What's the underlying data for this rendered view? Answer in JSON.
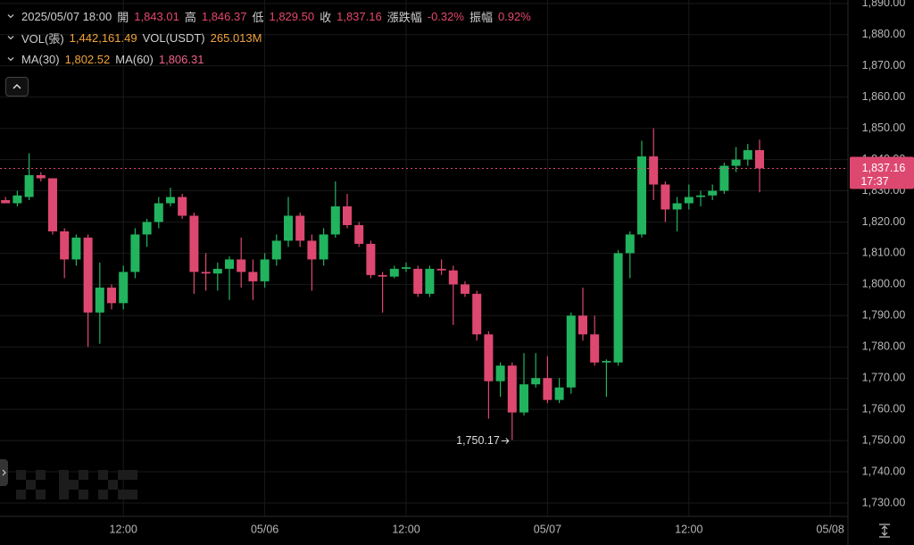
{
  "chart_data": {
    "type": "candlestick",
    "header": {
      "datetime": "2025/05/07 18:00",
      "items": [
        {
          "label": "開",
          "value": "1,843.01"
        },
        {
          "label": "高",
          "value": "1,846.37"
        },
        {
          "label": "低",
          "value": "1,829.50"
        },
        {
          "label": "收",
          "value": "1,837.16"
        },
        {
          "label": "漲跌幅",
          "value": "-0.32%"
        },
        {
          "label": "振幅",
          "value": "0.92%"
        }
      ],
      "volume": [
        {
          "label": "VOL(張)",
          "value": "1,442,161.49"
        },
        {
          "label": "VOL(USDT)",
          "value": "265.013M"
        }
      ],
      "ma": [
        {
          "label": "MA(30)",
          "value": "1,802.52"
        },
        {
          "label": "MA(60)",
          "value": "1,806.31"
        }
      ]
    },
    "open": [
      1827,
      1826,
      1828,
      1835,
      1834,
      1817,
      1808,
      1815,
      1791,
      1799,
      1794,
      1804,
      1816,
      1820,
      1826,
      1828,
      1822,
      1804,
      1803.5,
      1805,
      1808,
      1804,
      1801,
      1808,
      1814,
      1822,
      1814,
      1808,
      1816,
      1825,
      1819,
      1813,
      1803,
      1802.5,
      1805,
      1805,
      1797,
      1805,
      1804.5,
      1800,
      1797,
      1784,
      1769,
      1774,
      1759,
      1768,
      1770,
      1763,
      1767,
      1790,
      1784,
      1775,
      1775,
      1810,
      1816,
      1841,
      1832,
      1824,
      1826,
      1828,
      1828.5,
      1830,
      1838,
      1840,
      1843.01
    ],
    "high": [
      1828,
      1830,
      1842,
      1836,
      1834,
      1818,
      1816,
      1816,
      1807,
      1800,
      1806,
      1818,
      1821,
      1828,
      1831,
      1829,
      1823,
      1810,
      1807,
      1809,
      1815,
      1808,
      1810,
      1816,
      1828,
      1823,
      1816,
      1818,
      1833,
      1829,
      1820,
      1814,
      1804,
      1806,
      1807,
      1806,
      1806,
      1808,
      1806,
      1801,
      1798,
      1785,
      1775,
      1775,
      1778,
      1778,
      1777,
      1770,
      1791,
      1799,
      1790,
      1776,
      1811,
      1817,
      1846,
      1850,
      1833,
      1828,
      1832,
      1830,
      1832,
      1839,
      1844,
      1845,
      1846.37
    ],
    "low": [
      1826,
      1825,
      1827,
      1833,
      1816,
      1802,
      1806,
      1780,
      1781,
      1792,
      1792,
      1802,
      1812,
      1818,
      1825,
      1821,
      1797,
      1798,
      1798,
      1795,
      1799,
      1795,
      1799,
      1806,
      1812,
      1812,
      1798,
      1806,
      1815,
      1818,
      1812,
      1802,
      1791,
      1802,
      1804,
      1796,
      1796,
      1803,
      1787,
      1796,
      1782,
      1757,
      1764,
      1750.17,
      1758,
      1767,
      1762,
      1762,
      1765,
      1782,
      1774,
      1764,
      1774,
      1802,
      1815,
      1827,
      1820,
      1817,
      1824,
      1825,
      1827,
      1829,
      1836,
      1838,
      1829.5
    ],
    "close": [
      1826,
      1828.5,
      1835,
      1834,
      1817,
      1808,
      1815,
      1791,
      1799,
      1794,
      1804,
      1816,
      1820,
      1826,
      1828,
      1822,
      1804,
      1803.5,
      1805,
      1808,
      1804,
      1801,
      1808,
      1814,
      1822,
      1814,
      1808,
      1816,
      1825,
      1819,
      1813,
      1803,
      1802.5,
      1805,
      1805.5,
      1797,
      1805,
      1804.5,
      1800,
      1797,
      1784,
      1769,
      1774,
      1759,
      1768,
      1770,
      1763,
      1767,
      1790,
      1784,
      1775,
      1775.5,
      1810,
      1816,
      1841,
      1832,
      1824,
      1826,
      1828,
      1828.5,
      1830,
      1838,
      1840,
      1843,
      1837.16
    ],
    "up_color": "#22b35e",
    "down_color": "#dd4870",
    "ylim": [
      1725.7,
      1891.1
    ],
    "yticks": [
      {
        "value": 1730,
        "label": "1,730.00"
      },
      {
        "value": 1740,
        "label": "1,740.00"
      },
      {
        "value": 1750,
        "label": "1,750.00"
      },
      {
        "value": 1760,
        "label": "1,760.00"
      },
      {
        "value": 1770,
        "label": "1,770.00"
      },
      {
        "value": 1780,
        "label": "1,780.00"
      },
      {
        "value": 1790,
        "label": "1,790.00"
      },
      {
        "value": 1800,
        "label": "1,800.00"
      },
      {
        "value": 1810,
        "label": "1,810.00"
      },
      {
        "value": 1820,
        "label": "1,820.00"
      },
      {
        "value": 1830,
        "label": "1,830.00"
      },
      {
        "value": 1840,
        "label": "1,840.00"
      },
      {
        "value": 1850,
        "label": "1,850.00"
      },
      {
        "value": 1860,
        "label": "1,860.00"
      },
      {
        "value": 1870,
        "label": "1,870.00"
      },
      {
        "value": 1880,
        "label": "1,880.00"
      },
      {
        "value": 1890,
        "label": "1,890.00"
      }
    ],
    "xticks": [
      {
        "value": 10,
        "label": "12:00"
      },
      {
        "value": 22,
        "label": "05/06"
      },
      {
        "value": 34,
        "label": "12:00"
      },
      {
        "value": 46,
        "label": "05/07"
      },
      {
        "value": 58,
        "label": "12:00"
      },
      {
        "value": 70,
        "label": "05/08"
      }
    ],
    "grid": true,
    "current_price": {
      "value": 1837.16,
      "label": "1,837.16",
      "countdown": "17:37"
    },
    "low_label": "1,750.17"
  }
}
